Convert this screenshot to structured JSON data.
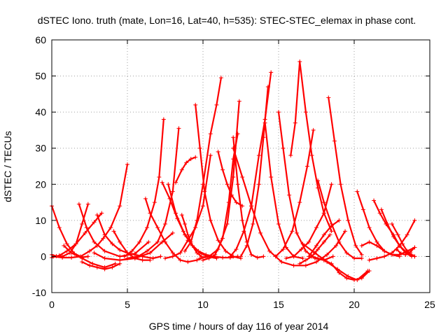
{
  "chart_data": {
    "type": "scatter",
    "title": "dSTEC Iono. truth (mate, Lon=16, Lat=40, h=535): STEC-STEC_elemax in phase cont.",
    "xlabel": "GPS time / hours of day 116 of year 2014",
    "ylabel": "dSTEC  / TECUs",
    "xlim": [
      0,
      25
    ],
    "ylim": [
      -10,
      60
    ],
    "xticks": [
      0,
      5,
      10,
      15,
      20,
      25
    ],
    "yticks": [
      -10,
      0,
      10,
      20,
      30,
      40,
      50,
      60
    ],
    "grid": true,
    "marker": "+",
    "color": "#ff0000",
    "series": [
      {
        "x": [
          0.0,
          0.5,
          1.0,
          1.5,
          2.0,
          2.4
        ],
        "y": [
          14,
          8,
          3.5,
          0.8,
          -0.2,
          0
        ]
      },
      {
        "x": [
          0.0,
          0.3,
          0.7,
          1.2,
          1.6,
          2.0,
          2.4
        ],
        "y": [
          0.5,
          0.1,
          0,
          1,
          3.5,
          9,
          14.5
        ]
      },
      {
        "x": [
          0.0,
          0.5,
          1.0,
          1.6,
          2.2,
          2.8,
          3.3
        ],
        "y": [
          -0.3,
          0.3,
          1.5,
          3.5,
          6.5,
          9.5,
          12
        ]
      },
      {
        "x": [
          0.1,
          0.7,
          1.3,
          1.9,
          2.5,
          3.0,
          3.4,
          3.9,
          4.5,
          5.0
        ],
        "y": [
          0,
          -0.3,
          -0.3,
          0,
          1.5,
          3,
          5,
          8,
          14,
          25.5
        ]
      },
      {
        "x": [
          1.8,
          2.3,
          2.8,
          3.5,
          4.5,
          5.5,
          6.4
        ],
        "y": [
          14.5,
          8,
          4,
          1.5,
          0,
          0.8,
          4
        ]
      },
      {
        "x": [
          0.8,
          1.3,
          2.0,
          2.7,
          3.5,
          4.2
        ],
        "y": [
          3,
          1,
          -0.5,
          -2,
          -3,
          -2
        ]
      },
      {
        "x": [
          2.0,
          2.5,
          3.0,
          3.5,
          4.0,
          4.5
        ],
        "y": [
          -1.5,
          -2.5,
          -3,
          -3.5,
          -3,
          -2
        ]
      },
      {
        "x": [
          4.1,
          4.5,
          5.0,
          5.5,
          6.0,
          6.5
        ],
        "y": [
          7,
          4,
          1,
          -0.5,
          -1,
          -1
        ]
      },
      {
        "x": [
          2.8,
          3.5,
          4.5,
          5.5,
          6.5,
          7.3,
          8.0
        ],
        "y": [
          1,
          -0.5,
          -1,
          -0.5,
          1,
          4,
          6.5
        ]
      },
      {
        "x": [
          3.0,
          3.5,
          4.0,
          4.5,
          5.0,
          5.5,
          6.0,
          6.7,
          7.2
        ],
        "y": [
          11.5,
          6,
          3.5,
          1.8,
          1,
          0.5,
          0,
          -0.5,
          0
        ]
      },
      {
        "x": [
          4.8,
          5.3,
          5.8,
          6.3,
          6.8,
          7.1,
          7.4
        ],
        "y": [
          0,
          1.5,
          4,
          8,
          15,
          22,
          38
        ]
      },
      {
        "x": [
          6.2,
          6.5,
          7.0,
          7.5,
          8.0,
          8.5,
          9.0,
          9.6,
          10.2
        ],
        "y": [
          16,
          12,
          8,
          4,
          1,
          -1,
          -1.5,
          -1,
          0
        ]
      },
      {
        "x": [
          5.0,
          5.7,
          6.3,
          7.0,
          7.5,
          8.0,
          8.4
        ],
        "y": [
          -0.5,
          0,
          1.5,
          4,
          9,
          18,
          35.5
        ]
      },
      {
        "x": [
          7.3,
          7.8,
          8.3,
          8.8,
          9.3,
          9.8,
          10.3,
          10.9
        ],
        "y": [
          20.5,
          16,
          10.5,
          6,
          3,
          1,
          0,
          -0.5
        ]
      },
      {
        "x": [
          7.7,
          8.2,
          8.7,
          9.2,
          9.7,
          10.2,
          10.7,
          11.3,
          11.8,
          12.3
        ],
        "y": [
          20,
          12,
          7,
          3.5,
          1.5,
          0.5,
          0,
          -0.3,
          -0.3,
          0
        ]
      },
      {
        "x": [
          7.5,
          8.0,
          8.5,
          9.0,
          9.5,
          10.0,
          10.5
        ],
        "y": [
          -0.5,
          0,
          1,
          4.5,
          8,
          14,
          28
        ]
      },
      {
        "x": [
          8.2,
          8.6,
          8.9,
          9.2,
          9.5
        ],
        "y": [
          20.5,
          24,
          26,
          27,
          27.5
        ]
      },
      {
        "x": [
          8.6,
          8.8,
          9.0,
          9.3,
          9.6,
          9.9
        ],
        "y": [
          11.5,
          9,
          6,
          3,
          1,
          0
        ]
      },
      {
        "x": [
          8.8,
          9.2,
          9.6,
          10.0,
          10.5,
          10.9,
          11.2
        ],
        "y": [
          1.5,
          4,
          10,
          20,
          34,
          42,
          49.5
        ]
      },
      {
        "x": [
          9.5,
          9.8,
          10.1,
          10.5,
          11.0,
          11.5,
          12.0,
          12.5
        ],
        "y": [
          42,
          30,
          18,
          10,
          4.5,
          1.5,
          0,
          -0.5
        ]
      },
      {
        "x": [
          9.8,
          10.4,
          11.0,
          11.6,
          12.0,
          12.4
        ],
        "y": [
          -0.5,
          0,
          2,
          9,
          22,
          43
        ]
      },
      {
        "x": [
          10.0,
          10.4,
          10.8,
          11.3,
          11.7,
          12.0,
          12.3
        ],
        "y": [
          -1,
          -0.5,
          0.5,
          5,
          15,
          27,
          34
        ]
      },
      {
        "x": [
          11.0,
          11.3,
          11.6,
          11.9,
          12.2,
          12.6
        ],
        "y": [
          29,
          24,
          20,
          17,
          15,
          14
        ]
      },
      {
        "x": [
          12.0,
          12.3,
          12.6,
          12.9,
          13.2,
          13.6,
          14.0
        ],
        "y": [
          33,
          20,
          10,
          4,
          0.5,
          -0.3,
          0
        ]
      },
      {
        "x": [
          11.8,
          12.2,
          12.7,
          13.2,
          13.7,
          14.1,
          14.5
        ],
        "y": [
          0,
          2,
          7,
          14,
          28,
          38,
          51
        ]
      },
      {
        "x": [
          12.5,
          12.9,
          13.3,
          13.7,
          14.0,
          14.3
        ],
        "y": [
          0,
          3,
          9,
          20,
          33,
          47
        ]
      },
      {
        "x": [
          12.0,
          12.6,
          13.2,
          13.8,
          14.4,
          15.2,
          16.0,
          16.8,
          17.5,
          18.2,
          18.8,
          19.4
        ],
        "y": [
          30,
          22,
          14,
          6.5,
          1.5,
          -1.5,
          -2.5,
          -2.5,
          -1.5,
          0.5,
          3,
          7
        ]
      },
      {
        "x": [
          14.1,
          14.5,
          15.0,
          15.5,
          16.0,
          16.6
        ],
        "y": [
          37,
          22,
          9,
          2.5,
          0,
          -0.5
        ]
      },
      {
        "x": [
          15.0,
          15.3,
          15.7,
          16.2,
          16.8,
          17.4,
          18.0,
          18.6
        ],
        "y": [
          40,
          30,
          17,
          6.5,
          1.5,
          -0.5,
          -1,
          0
        ]
      },
      {
        "x": [
          14.8,
          15.3,
          15.9,
          16.4,
          16.9,
          17.3
        ],
        "y": [
          0,
          2,
          7,
          15,
          25,
          35
        ]
      },
      {
        "x": [
          15.8,
          16.1,
          16.4,
          16.8,
          17.2,
          17.6,
          18.0,
          18.5
        ],
        "y": [
          28,
          37,
          54,
          40,
          28,
          19,
          12,
          7
        ]
      },
      {
        "x": [
          15.5,
          16.0,
          16.5,
          17.0,
          17.5,
          18.0,
          18.5
        ],
        "y": [
          -0.5,
          0,
          2,
          4,
          8,
          12,
          20
        ]
      },
      {
        "x": [
          17.6,
          18.0,
          18.5,
          19.0,
          19.5,
          20.0,
          20.5
        ],
        "y": [
          21,
          15,
          9,
          4,
          1,
          -0.5,
          -0.5
        ]
      },
      {
        "x": [
          16.4,
          16.8,
          17.2,
          17.6,
          18.0,
          18.4
        ],
        "y": [
          -2,
          -1,
          0,
          2,
          4,
          6
        ]
      },
      {
        "x": [
          16.6,
          17.4,
          18.2,
          18.9,
          19.6,
          20.2,
          20.9
        ],
        "y": [
          3.5,
          1,
          -1.5,
          -3.5,
          -5.5,
          -6.5,
          -4
        ]
      },
      {
        "x": [
          17.2,
          17.6,
          18.0,
          18.5,
          19.0,
          19.5,
          20.0,
          20.5,
          21.0
        ],
        "y": [
          0,
          -0.5,
          -1,
          -2,
          -4.5,
          -6,
          -6.5,
          -6,
          -4
        ]
      },
      {
        "x": [
          18.3,
          18.7,
          19.1,
          19.6,
          20.1,
          20.5
        ],
        "y": [
          44,
          32,
          20,
          10,
          3,
          0.5
        ]
      },
      {
        "x": [
          17.0,
          17.5,
          18.0,
          18.5,
          19.0
        ],
        "y": [
          0,
          3,
          6,
          8.5,
          10
        ]
      },
      {
        "x": [
          20.2,
          20.6,
          21.0,
          21.5,
          22.0,
          22.5,
          23.0
        ],
        "y": [
          18,
          13,
          8,
          4,
          1.5,
          0.5,
          0
        ]
      },
      {
        "x": [
          21.3,
          21.7,
          22.1,
          22.6,
          23.0,
          23.5,
          24.0
        ],
        "y": [
          15.5,
          12,
          9,
          6,
          3,
          1,
          0
        ]
      },
      {
        "x": [
          21.8,
          22.2,
          22.6,
          23.0,
          23.4,
          23.8
        ],
        "y": [
          13,
          9,
          5.5,
          3,
          1,
          0
        ]
      },
      {
        "x": [
          21.0,
          21.5,
          22.0,
          22.5,
          23.0,
          23.5,
          24.0
        ],
        "y": [
          -1,
          -0.5,
          0,
          1,
          3,
          6,
          10
        ]
      },
      {
        "x": [
          22.5,
          22.9,
          23.2,
          23.5,
          23.8,
          24.0
        ],
        "y": [
          9,
          6,
          3.5,
          1.5,
          0.5,
          0
        ]
      },
      {
        "x": [
          20.5,
          21.0,
          21.5,
          22.0,
          22.5,
          23.0,
          23.5,
          24.0
        ],
        "y": [
          3,
          4,
          3,
          1.5,
          0.5,
          0.5,
          1.5,
          2.5
        ]
      },
      {
        "x": [
          22.8,
          23.1,
          23.4,
          23.7,
          24.0
        ],
        "y": [
          2,
          0.8,
          0.5,
          1.2,
          2.5
        ]
      }
    ]
  }
}
